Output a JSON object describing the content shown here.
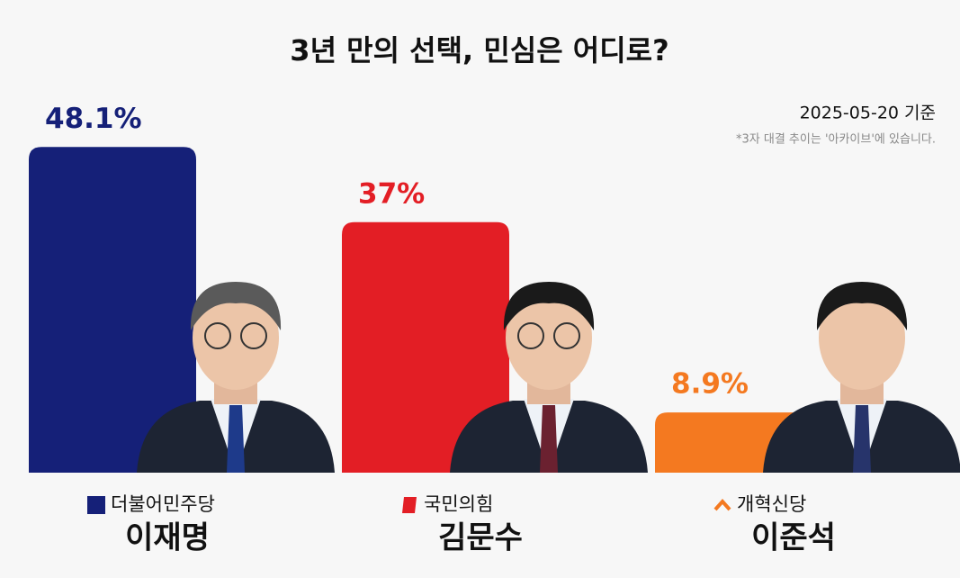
{
  "chart_data": {
    "type": "bar",
    "title": "3년 만의 선택, 민심은 어디로?",
    "subtitle": "2025-05-20 기준",
    "annotation": "*3자 대결 추이는 '아카이브'에 있습니다.",
    "categories": [
      "이재명",
      "김문수",
      "이준석"
    ],
    "parties": [
      "더불어민주당",
      "국민의힘",
      "개혁신당"
    ],
    "values": [
      48.1,
      37,
      8.9
    ],
    "value_labels": [
      "48.1%",
      "37%",
      "8.9%"
    ],
    "colors": [
      "#152078",
      "#e31e25",
      "#f47920"
    ]
  }
}
